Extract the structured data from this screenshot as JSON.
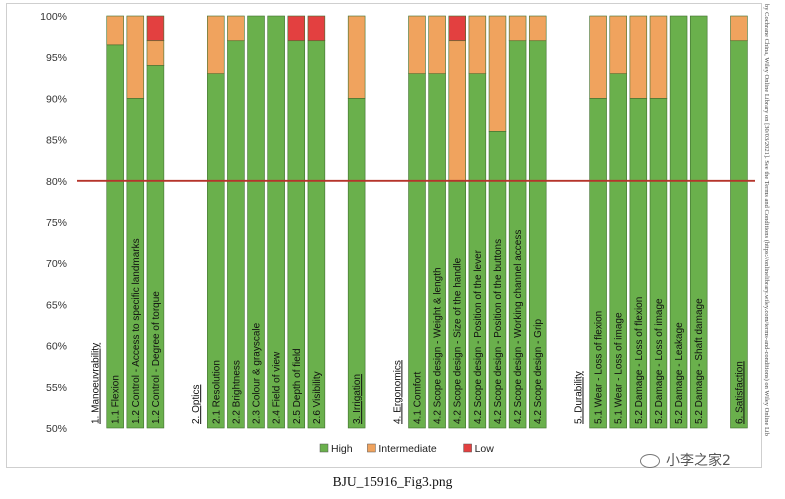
{
  "caption": "BJU_15916_Fig3.png",
  "side_note": "by Cochrane China, Wiley Online Library on [30/03/2021]. See the Terms and Conditions (https://onlinelibrary.wiley.com/terms-and-conditions) on Wiley Online Lib",
  "watermark": "小李之家2",
  "colors": {
    "high": "#6ab04c",
    "intermediate": "#f0a35e",
    "low": "#e34040",
    "threshold": "#b5352b",
    "bar_stroke": "#3f6f2e"
  },
  "chart_data": {
    "type": "bar",
    "stacked": true,
    "ylim": [
      50,
      100
    ],
    "yticks": [
      "50%",
      "55%",
      "60%",
      "65%",
      "70%",
      "75%",
      "80%",
      "85%",
      "90%",
      "95%",
      "100%"
    ],
    "threshold": 80,
    "legend": [
      "High",
      "Intermediate",
      "Low"
    ],
    "legend_position": "bottom",
    "items": [
      {
        "kind": "group",
        "label": "1. Manoeuvrability"
      },
      {
        "kind": "bar",
        "label": "1.1 Flexion",
        "high": 96.5,
        "intermediate": 3.5,
        "low": 0
      },
      {
        "kind": "bar",
        "label": "1.2 Control - Access to specific landmarks",
        "high": 90,
        "intermediate": 10,
        "low": 0
      },
      {
        "kind": "bar",
        "label": "1.2 Control - Degree of torque",
        "high": 94,
        "intermediate": 3,
        "low": 3
      },
      {
        "kind": "gap"
      },
      {
        "kind": "group",
        "label": "2. Optics"
      },
      {
        "kind": "bar",
        "label": "2.1 Resolution",
        "high": 93,
        "intermediate": 7,
        "low": 0
      },
      {
        "kind": "bar",
        "label": "2.2 Brightness",
        "high": 97,
        "intermediate": 3,
        "low": 0
      },
      {
        "kind": "bar",
        "label": "2.3 Colour & grayscale",
        "high": 100,
        "intermediate": 0,
        "low": 0
      },
      {
        "kind": "bar",
        "label": "2.4 Field of view",
        "high": 100,
        "intermediate": 0,
        "low": 0
      },
      {
        "kind": "bar",
        "label": "2.5 Depth of field",
        "high": 97,
        "intermediate": 0,
        "low": 3
      },
      {
        "kind": "bar",
        "label": "2.6 Visibility",
        "high": 97,
        "intermediate": 0,
        "low": 3
      },
      {
        "kind": "gap"
      },
      {
        "kind": "bar",
        "label": "3. Irrigation",
        "high": 90,
        "intermediate": 10,
        "low": 0,
        "underline": true
      },
      {
        "kind": "gap"
      },
      {
        "kind": "group",
        "label": "4. Ergonomics"
      },
      {
        "kind": "bar",
        "label": "4.1 Comfort",
        "high": 93,
        "intermediate": 7,
        "low": 0
      },
      {
        "kind": "bar",
        "label": "4.2 Scope design - Weight & length",
        "high": 93,
        "intermediate": 7,
        "low": 0
      },
      {
        "kind": "bar",
        "label": "4.2 Scope design - Size of the handle",
        "high": 80,
        "intermediate": 17,
        "low": 3
      },
      {
        "kind": "bar",
        "label": "4.2 Scope design - Position of the lever",
        "high": 93,
        "intermediate": 7,
        "low": 0
      },
      {
        "kind": "bar",
        "label": "4.2 Scope design - Position of the buttons",
        "high": 86,
        "intermediate": 14,
        "low": 0
      },
      {
        "kind": "bar",
        "label": "4.2 Scope design - Working channel access",
        "high": 97,
        "intermediate": 3,
        "low": 0
      },
      {
        "kind": "bar",
        "label": "4.2 Scope design - Grip",
        "high": 97,
        "intermediate": 3,
        "low": 0
      },
      {
        "kind": "gap"
      },
      {
        "kind": "group",
        "label": "5. Durability"
      },
      {
        "kind": "bar",
        "label": "5.1 Wear - Loss of flexion",
        "high": 90,
        "intermediate": 10,
        "low": 0
      },
      {
        "kind": "bar",
        "label": "5.1 Wear - Loss of image",
        "high": 93,
        "intermediate": 7,
        "low": 0
      },
      {
        "kind": "bar",
        "label": "5.2 Damage - Loss of flexion",
        "high": 90,
        "intermediate": 10,
        "low": 0
      },
      {
        "kind": "bar",
        "label": "5.2 Damage - Loss of image",
        "high": 90,
        "intermediate": 10,
        "low": 0
      },
      {
        "kind": "bar",
        "label": "5.2 Damage - Leakage",
        "high": 100,
        "intermediate": 0,
        "low": 0
      },
      {
        "kind": "bar",
        "label": "5.2 Damage - Shaft damage",
        "high": 100,
        "intermediate": 0,
        "low": 0
      },
      {
        "kind": "gap"
      },
      {
        "kind": "bar",
        "label": "6. Satisfaction",
        "high": 97,
        "intermediate": 3,
        "low": 0,
        "underline": true
      }
    ]
  }
}
